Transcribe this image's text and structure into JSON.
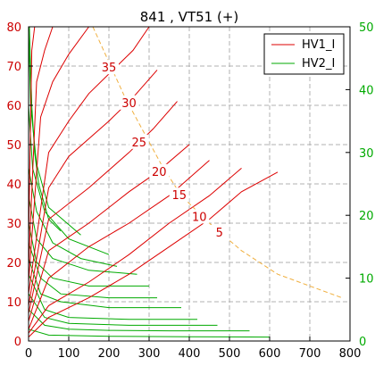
{
  "chart_data": {
    "type": "line",
    "title": "841 , VT51  (+)",
    "xlabel": "",
    "ylabel": "",
    "xlim": [
      0,
      800
    ],
    "ylim": [
      0,
      80
    ],
    "y2lim": [
      0,
      50
    ],
    "x_ticks": [
      0,
      100,
      200,
      300,
      400,
      500,
      600,
      700,
      800
    ],
    "y_ticks": [
      0,
      10,
      20,
      30,
      40,
      50,
      60,
      70,
      80
    ],
    "y2_ticks": [
      0,
      10,
      20,
      30,
      40,
      50
    ],
    "grid": true,
    "legend": "top-right",
    "legend_entries": [
      {
        "label": "HV1_I",
        "color": "#dd0000"
      },
      {
        "label": "HV2_I",
        "color": "#00aa00"
      }
    ],
    "colors": {
      "hv1": "#dd0000",
      "hv2": "#00aa00",
      "envelope": "#f0b040"
    },
    "hv1_curves": [
      [
        [
          0,
          1
        ],
        [
          50,
          6
        ],
        [
          150,
          11
        ],
        [
          250,
          17
        ],
        [
          350,
          24
        ],
        [
          450,
          31
        ],
        [
          530,
          38
        ],
        [
          620,
          43
        ]
      ],
      [
        [
          0,
          2
        ],
        [
          50,
          9
        ],
        [
          150,
          15
        ],
        [
          250,
          22
        ],
        [
          350,
          30
        ],
        [
          450,
          37
        ],
        [
          530,
          44
        ]
      ],
      [
        [
          0,
          3
        ],
        [
          50,
          16
        ],
        [
          150,
          24
        ],
        [
          250,
          30
        ],
        [
          350,
          37
        ],
        [
          450,
          46
        ]
      ],
      [
        [
          0,
          5
        ],
        [
          50,
          23
        ],
        [
          150,
          30
        ],
        [
          250,
          38
        ],
        [
          320,
          43
        ],
        [
          400,
          50
        ]
      ],
      [
        [
          0,
          7
        ],
        [
          50,
          31
        ],
        [
          150,
          39
        ],
        [
          250,
          48
        ],
        [
          310,
          54
        ],
        [
          370,
          61
        ]
      ],
      [
        [
          0,
          9
        ],
        [
          50,
          39
        ],
        [
          100,
          47
        ],
        [
          200,
          56
        ],
        [
          260,
          62
        ],
        [
          320,
          69
        ]
      ],
      [
        [
          0,
          12
        ],
        [
          50,
          48
        ],
        [
          100,
          56
        ],
        [
          150,
          63
        ],
        [
          210,
          69
        ],
        [
          260,
          74
        ],
        [
          300,
          80
        ]
      ],
      [
        [
          0,
          15
        ],
        [
          30,
          57
        ],
        [
          60,
          66
        ],
        [
          100,
          73
        ],
        [
          150,
          80
        ]
      ],
      [
        [
          0,
          19
        ],
        [
          20,
          66
        ],
        [
          40,
          74
        ],
        [
          60,
          80
        ]
      ],
      [
        [
          0,
          25
        ],
        [
          8,
          74
        ],
        [
          15,
          80
        ]
      ]
    ],
    "hv2_curves": [
      [
        [
          0,
          3
        ],
        [
          50,
          1.5
        ],
        [
          200,
          1.2
        ],
        [
          400,
          1.1
        ],
        [
          600,
          1
        ]
      ],
      [
        [
          0,
          8
        ],
        [
          40,
          4
        ],
        [
          100,
          3
        ],
        [
          200,
          2.7
        ],
        [
          350,
          2.6
        ],
        [
          550,
          2.6
        ]
      ],
      [
        [
          0,
          12
        ],
        [
          40,
          6
        ],
        [
          100,
          4.5
        ],
        [
          250,
          4
        ],
        [
          470,
          4
        ]
      ],
      [
        [
          0,
          17
        ],
        [
          40,
          8
        ],
        [
          100,
          6
        ],
        [
          250,
          5.5
        ],
        [
          420,
          5.5
        ]
      ],
      [
        [
          0,
          21
        ],
        [
          30,
          12
        ],
        [
          80,
          10
        ],
        [
          200,
          8.5
        ],
        [
          380,
          8.5
        ]
      ],
      [
        [
          0,
          25
        ],
        [
          30,
          16
        ],
        [
          80,
          12
        ],
        [
          200,
          11
        ],
        [
          320,
          11
        ]
      ],
      [
        [
          0,
          30
        ],
        [
          20,
          20
        ],
        [
          60,
          16
        ],
        [
          150,
          14
        ],
        [
          300,
          14
        ]
      ],
      [
        [
          0,
          37
        ],
        [
          20,
          26
        ],
        [
          60,
          21
        ],
        [
          150,
          18
        ],
        [
          270,
          17
        ]
      ],
      [
        [
          0,
          44
        ],
        [
          20,
          33
        ],
        [
          60,
          25
        ],
        [
          130,
          21
        ],
        [
          220,
          19
        ]
      ],
      [
        [
          0,
          60
        ],
        [
          10,
          44
        ],
        [
          40,
          33
        ],
        [
          100,
          26
        ],
        [
          200,
          22
        ]
      ],
      [
        [
          0,
          80
        ],
        [
          5,
          60
        ],
        [
          20,
          45
        ],
        [
          50,
          34
        ],
        [
          130,
          27
        ]
      ],
      [
        [
          2,
          80
        ],
        [
          8,
          60
        ],
        [
          15,
          48
        ],
        [
          25,
          40
        ],
        [
          50,
          31
        ],
        [
          80,
          28
        ]
      ]
    ],
    "envelope": [
      [
        160,
        80
      ],
      [
        240,
        62
      ],
      [
        330,
        45
      ],
      [
        380,
        37
      ],
      [
        450,
        30
      ],
      [
        530,
        23
      ],
      [
        620,
        17
      ],
      [
        700,
        14
      ],
      [
        780,
        11
      ]
    ],
    "contour_labels": [
      {
        "text": "35",
        "x": 200,
        "y": 69.5
      },
      {
        "text": "30",
        "x": 250,
        "y": 60.5
      },
      {
        "text": "25",
        "x": 275,
        "y": 50.5
      },
      {
        "text": "20",
        "x": 325,
        "y": 43
      },
      {
        "text": "15",
        "x": 375,
        "y": 37
      },
      {
        "text": "10",
        "x": 425,
        "y": 31.5
      },
      {
        "text": "5",
        "x": 475,
        "y": 27.5
      }
    ]
  }
}
